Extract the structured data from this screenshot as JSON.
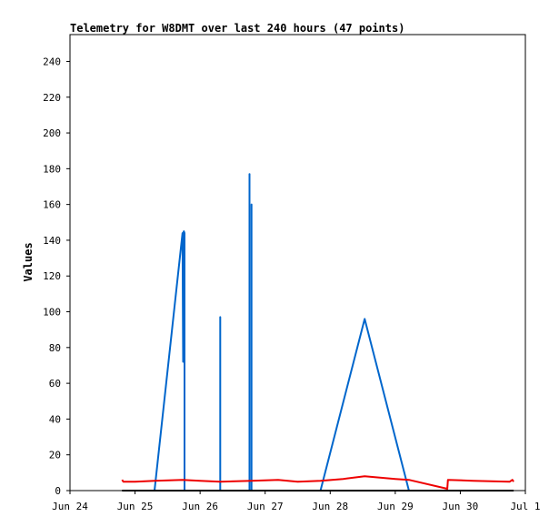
{
  "chart_data": {
    "type": "line",
    "title": "Telemetry for W8DMT over last 240 hours (47 points)",
    "xlabel": "",
    "ylabel": "Values",
    "x_ticks": [
      "Jun 24",
      "Jun 25",
      "Jun 26",
      "Jun 27",
      "Jun 28",
      "Jun 29",
      "Jun 30",
      "Jul 1"
    ],
    "y_ticks": [
      0,
      20,
      40,
      60,
      80,
      100,
      120,
      140,
      160,
      180,
      200,
      220,
      240
    ],
    "xlim": [
      0,
      7
    ],
    "ylim": [
      0,
      255
    ],
    "grid": false,
    "colors": {
      "blue": "#0066cc",
      "red": "#ee0000",
      "black": "#000000"
    },
    "series": [
      {
        "color": "#0066cc",
        "x": [
          1.3,
          1.73,
          1.74,
          1.74,
          1.75,
          1.76,
          1.76,
          2.31,
          2.31,
          2.31,
          2.76,
          2.76,
          2.76,
          2.79,
          2.79,
          2.79,
          3.85,
          4.53,
          5.21
        ],
        "y": [
          0,
          144,
          72,
          144,
          145,
          144,
          0,
          0,
          97,
          0,
          0,
          177,
          0,
          0,
          160,
          0,
          0,
          96,
          0
        ]
      },
      {
        "color": "#ee0000",
        "x": [
          0.8,
          0.82,
          1.0,
          1.3,
          1.73,
          2.0,
          2.31,
          2.79,
          3.2,
          3.5,
          3.85,
          4.2,
          4.53,
          5.0,
          5.21,
          5.8,
          5.81,
          6.2,
          6.76,
          6.8,
          6.82
        ],
        "y": [
          6,
          5,
          5,
          5.5,
          6,
          5.5,
          5,
          5.5,
          6,
          5,
          5.5,
          6.5,
          8,
          6.5,
          6,
          1,
          6,
          5.5,
          5,
          6,
          5
        ]
      },
      {
        "color": "#000000",
        "x": [
          0.8,
          6.82
        ],
        "y": [
          0,
          0
        ]
      }
    ]
  }
}
